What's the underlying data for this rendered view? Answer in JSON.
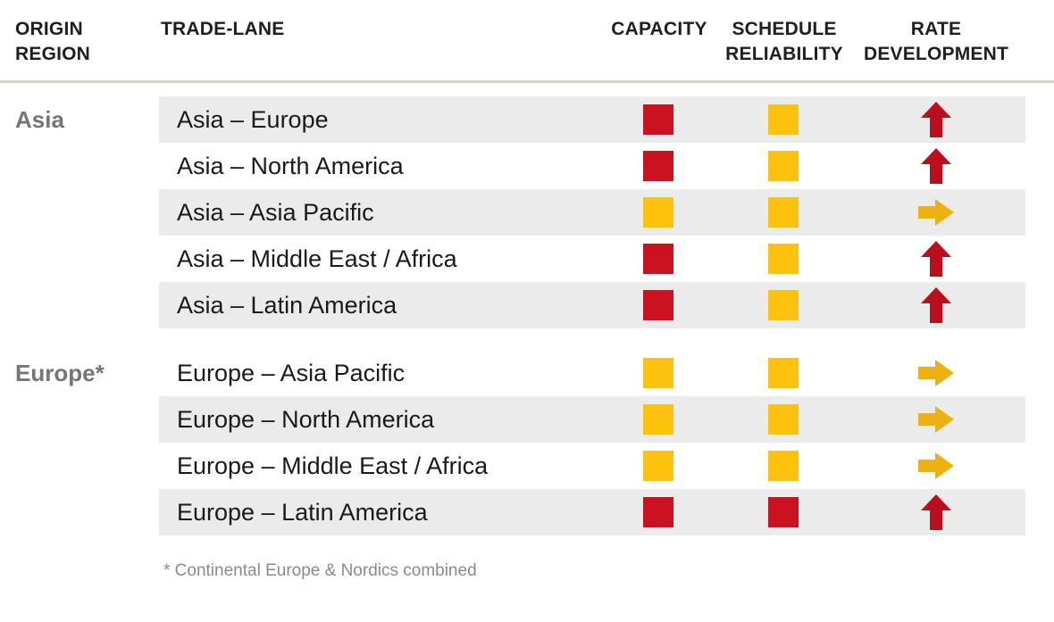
{
  "colors": {
    "red": "#cb1220",
    "yellow": "#fdc20d",
    "arrow_red": "#bd0e1d",
    "arrow_yellow": "#edb111",
    "row_shaded_bg": "#ebebeb",
    "header_rule": "#d8d4c0",
    "heading_text": "#1f1f1f",
    "lane_text": "#1a1a1a",
    "region_label_text": "#757575",
    "footnote_text": "#8a8a8a"
  },
  "header": {
    "origin_region": "ORIGIN REGION",
    "trade_lane": "TRADE-LANE",
    "capacity": "CAPACITY",
    "schedule_reliability": "SCHEDULE RELIABILITY",
    "rate_development": "RATE DEVELOPMENT"
  },
  "sections": [
    {
      "region": "Asia",
      "rows": [
        {
          "lane": "Asia – Europe",
          "capacity": "red",
          "schedule_reliability": "yellow",
          "rate_development": "up-red"
        },
        {
          "lane": "Asia – North America",
          "capacity": "red",
          "schedule_reliability": "yellow",
          "rate_development": "up-red"
        },
        {
          "lane": "Asia – Asia Pacific",
          "capacity": "yellow",
          "schedule_reliability": "yellow",
          "rate_development": "right-yellow"
        },
        {
          "lane": "Asia – Middle East / Africa",
          "capacity": "red",
          "schedule_reliability": "yellow",
          "rate_development": "up-red"
        },
        {
          "lane": "Asia – Latin America",
          "capacity": "red",
          "schedule_reliability": "yellow",
          "rate_development": "up-red"
        }
      ]
    },
    {
      "region": "Europe*",
      "rows": [
        {
          "lane": "Europe – Asia Pacific",
          "capacity": "yellow",
          "schedule_reliability": "yellow",
          "rate_development": "right-yellow"
        },
        {
          "lane": "Europe – North America",
          "capacity": "yellow",
          "schedule_reliability": "yellow",
          "rate_development": "right-yellow"
        },
        {
          "lane": "Europe – Middle East / Africa",
          "capacity": "yellow",
          "schedule_reliability": "yellow",
          "rate_development": "right-yellow"
        },
        {
          "lane": "Europe – Latin America",
          "capacity": "red",
          "schedule_reliability": "red",
          "rate_development": "up-red"
        }
      ]
    }
  ],
  "footnote": "* Continental Europe & Nordics combined",
  "chart_data": {
    "type": "table",
    "columns": [
      "ORIGIN REGION",
      "TRADE-LANE",
      "CAPACITY",
      "SCHEDULE RELIABILITY",
      "RATE DEVELOPMENT"
    ],
    "rows": [
      [
        "Asia",
        "Asia – Europe",
        "red square",
        "yellow square",
        "up arrow (red)"
      ],
      [
        "Asia",
        "Asia – North America",
        "red square",
        "yellow square",
        "up arrow (red)"
      ],
      [
        "Asia",
        "Asia – Asia Pacific",
        "yellow square",
        "yellow square",
        "right arrow (yellow)"
      ],
      [
        "Asia",
        "Asia – Middle East / Africa",
        "red square",
        "yellow square",
        "up arrow (red)"
      ],
      [
        "Asia",
        "Asia – Latin America",
        "red square",
        "yellow square",
        "up arrow (red)"
      ],
      [
        "Europe*",
        "Europe – Asia Pacific",
        "yellow square",
        "yellow square",
        "right arrow (yellow)"
      ],
      [
        "Europe*",
        "Europe – North America",
        "yellow square",
        "yellow square",
        "right arrow (yellow)"
      ],
      [
        "Europe*",
        "Europe – Middle East / Africa",
        "yellow square",
        "yellow square",
        "right arrow (yellow)"
      ],
      [
        "Europe*",
        "Europe – Latin America",
        "red square",
        "red square",
        "up arrow (red)"
      ]
    ],
    "footnote": "* Continental Europe & Nordics combined",
    "legend_colors": {
      "red": "#cb1220",
      "yellow": "#fdc20d"
    },
    "layout_hints": {
      "zebra_striping": true,
      "status_indicators": "colored squares and arrows"
    }
  }
}
